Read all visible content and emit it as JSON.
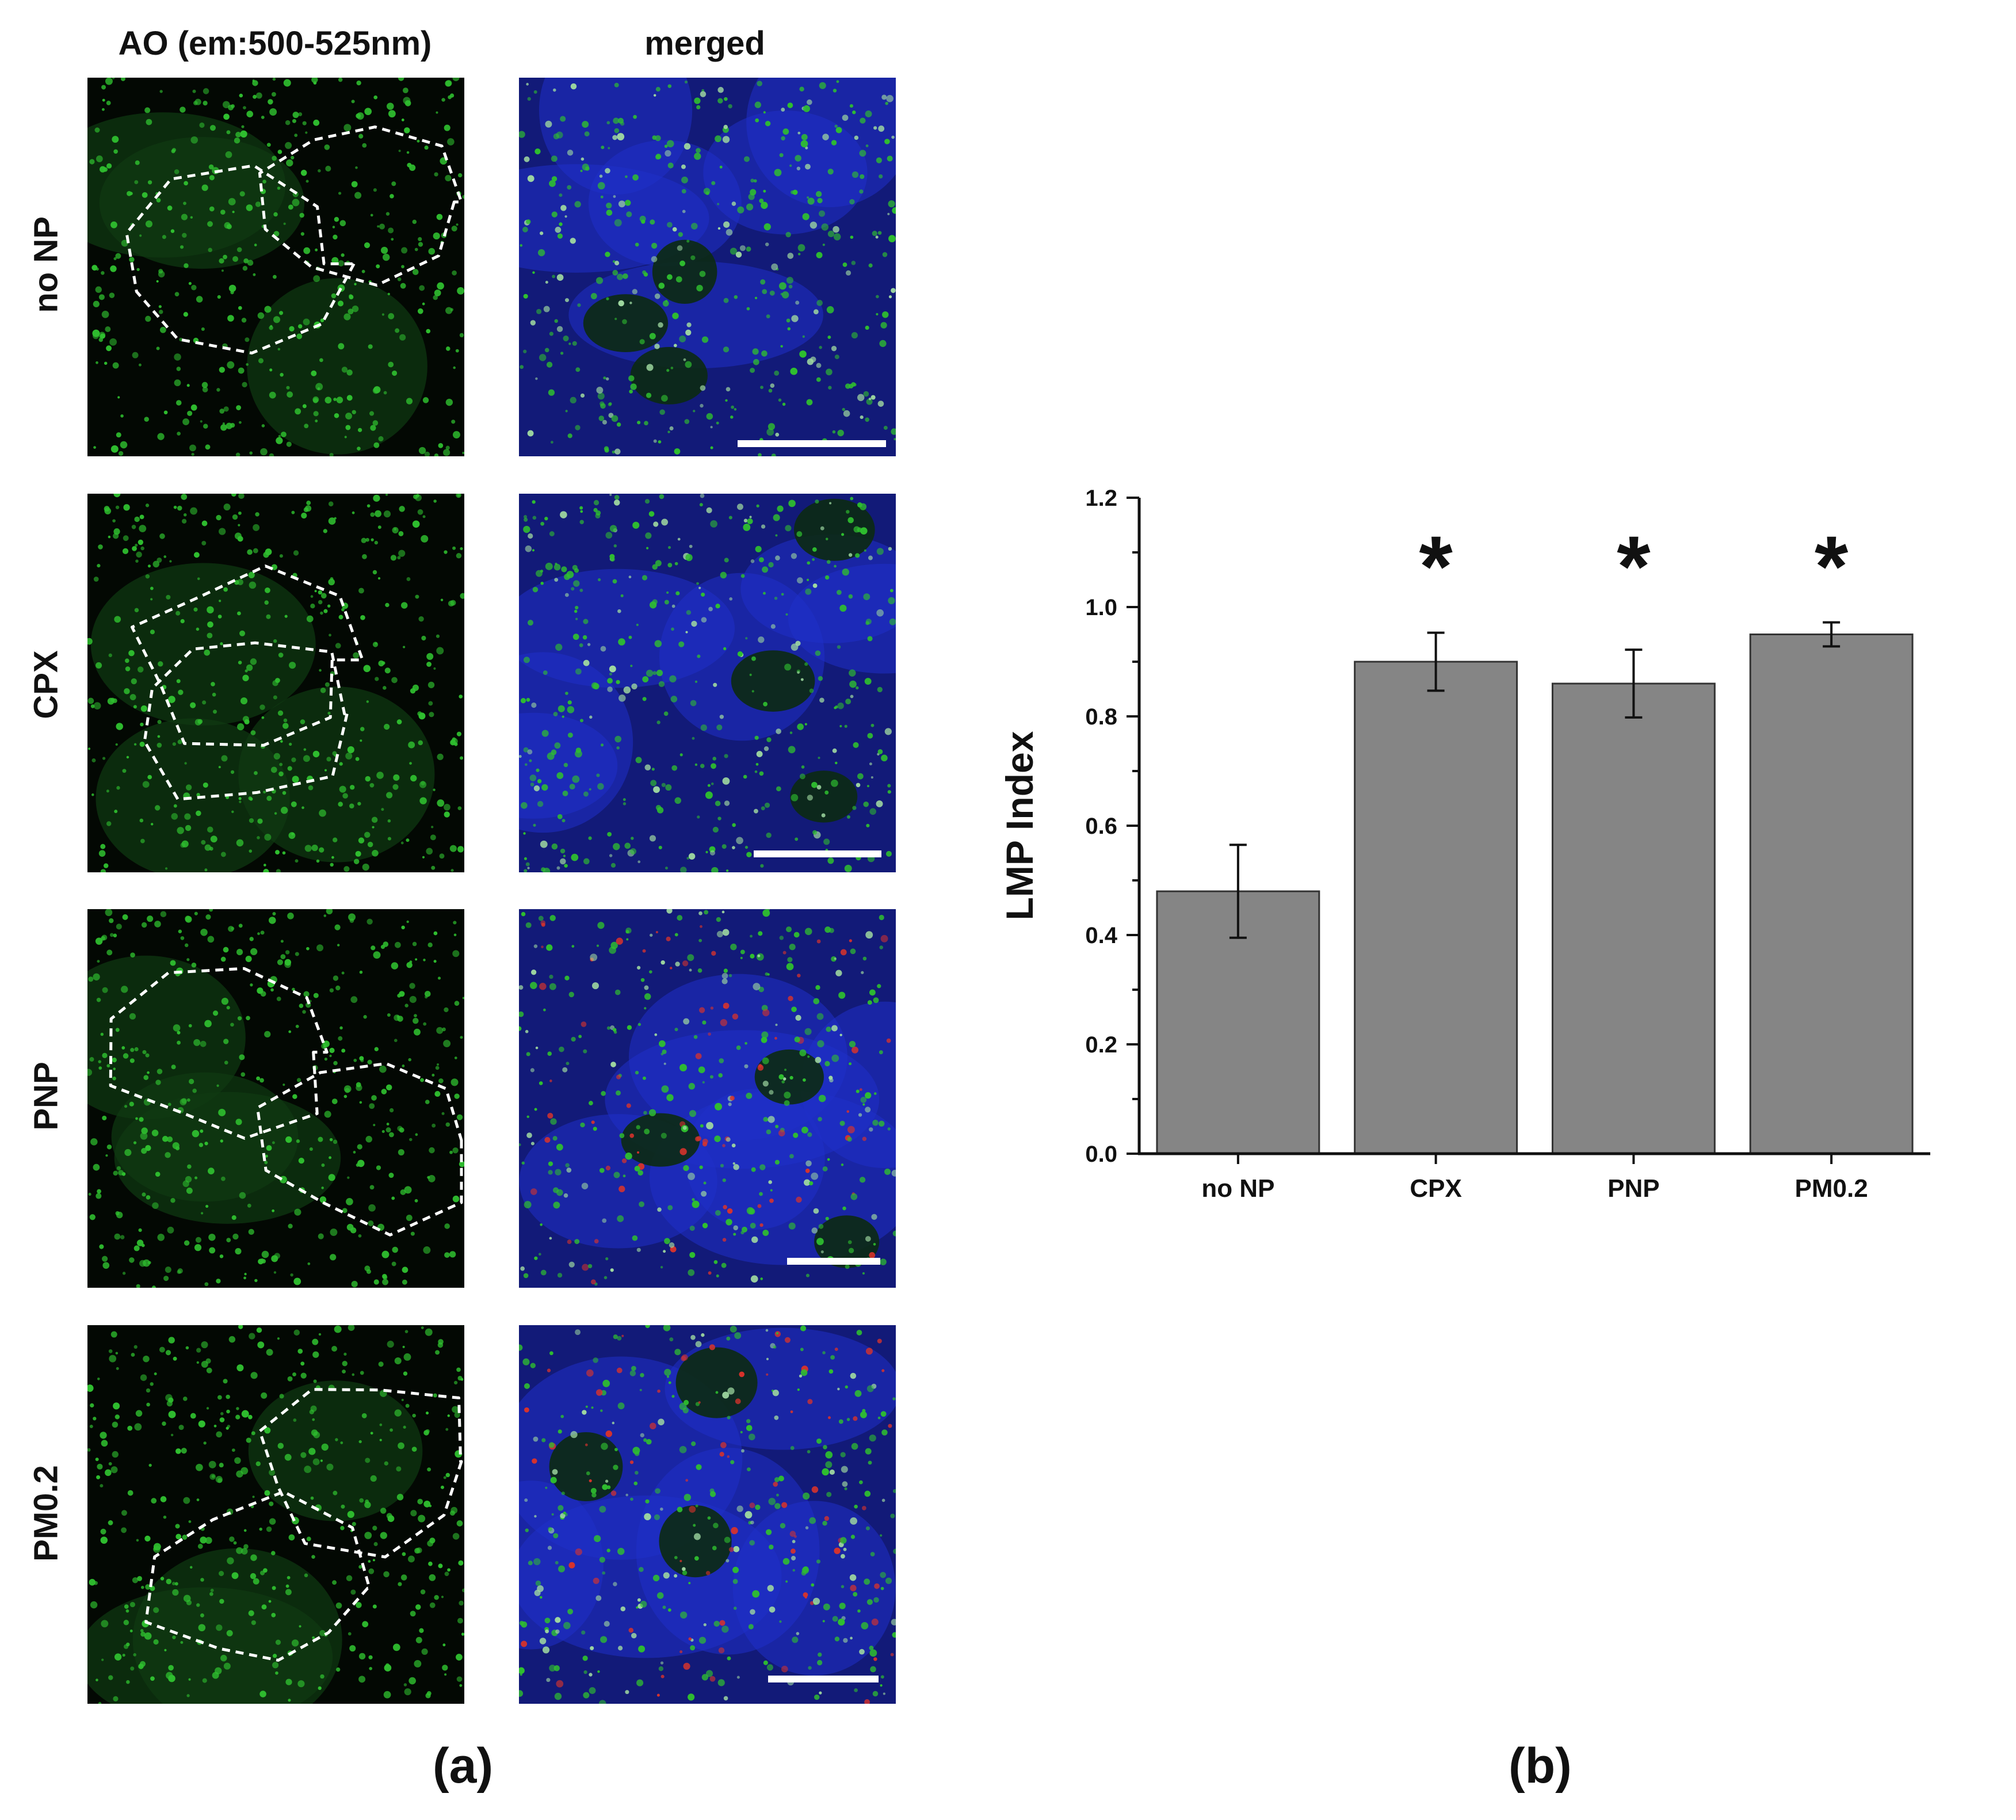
{
  "panel_a": {
    "column_headers": [
      "AO (em:500-525nm)",
      "merged"
    ],
    "row_labels": [
      "no NP",
      "CPX",
      "PNP",
      "PM0.2"
    ],
    "letter": "(a)"
  },
  "panel_b": {
    "letter": "(b)"
  },
  "colors": {
    "bar_fill": "#858585",
    "bar_stroke": "#333333",
    "ao_green": "#2fbf2f",
    "merged_blue": "#1f2fc8",
    "merged_red": "#d8332c"
  },
  "chart_data": {
    "type": "bar",
    "categories": [
      "no NP",
      "CPX",
      "PNP",
      "PM0.2"
    ],
    "values": [
      0.48,
      0.9,
      0.86,
      0.95
    ],
    "errors": [
      0.085,
      0.053,
      0.062,
      0.022
    ],
    "significance": [
      "",
      "*",
      "*",
      "*"
    ],
    "ylabel": "LMP Index",
    "xlabel": "",
    "ylim": [
      0.0,
      1.2
    ],
    "yticks": [
      "0.0",
      "0.2",
      "0.4",
      "0.6",
      "0.8",
      "1.0",
      "1.2"
    ],
    "grid": false,
    "legend": "none"
  }
}
